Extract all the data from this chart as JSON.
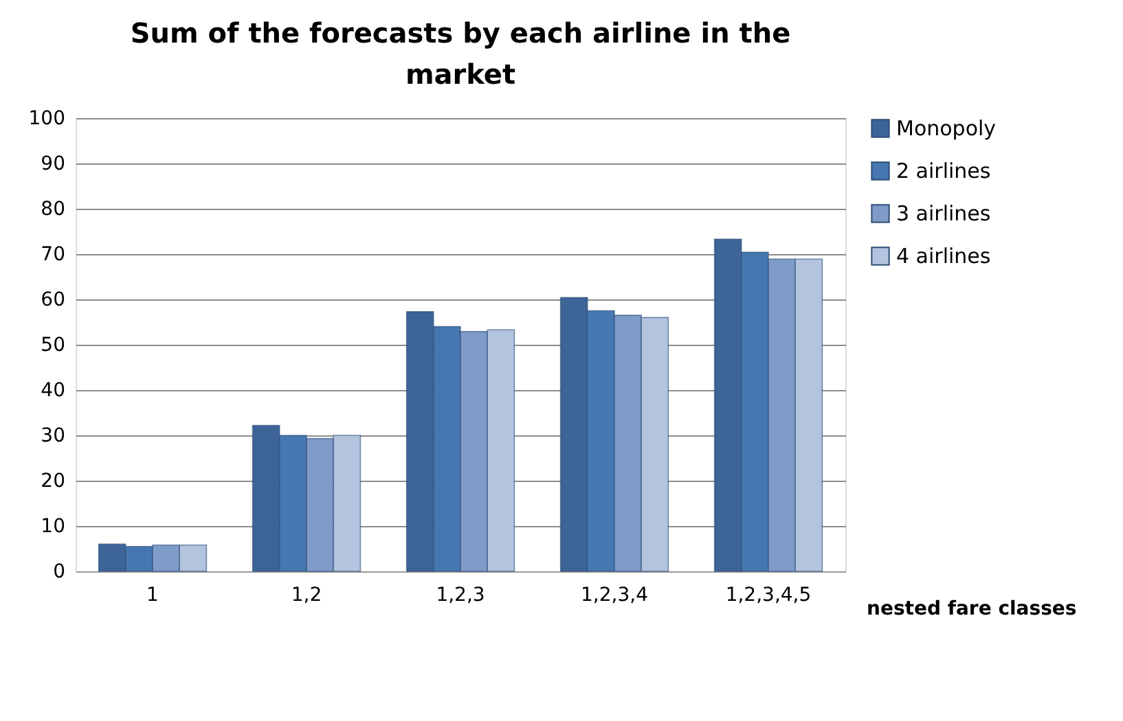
{
  "chart_data": {
    "type": "bar",
    "title": "Sum of the forecasts by each airline in the market",
    "xlabel": "nested fare classes",
    "categories": [
      "1",
      "1,2",
      "1,2,3",
      "1,2,3,4",
      "1,2,3,4,5"
    ],
    "series": [
      {
        "name": "Monopoly",
        "color": "#3c6496",
        "values": [
          6,
          32.2,
          57.3,
          60.4,
          73.3
        ]
      },
      {
        "name": "2 airlines",
        "color": "#4677b0",
        "values": [
          5.5,
          30,
          54,
          57.5,
          70.4
        ]
      },
      {
        "name": "3 airlines",
        "color": "#7f9cc8",
        "values": [
          5.8,
          29.3,
          52.9,
          56.5,
          68.9
        ]
      },
      {
        "name": "4 airlines",
        "color": "#b4c3de",
        "values": [
          5.8,
          30,
          53.3,
          56,
          68.9
        ]
      }
    ],
    "ylim": [
      0,
      100
    ],
    "yticks": [
      0,
      10,
      20,
      30,
      40,
      50,
      60,
      70,
      80,
      90,
      100
    ],
    "grid": "y",
    "legend": "right"
  }
}
